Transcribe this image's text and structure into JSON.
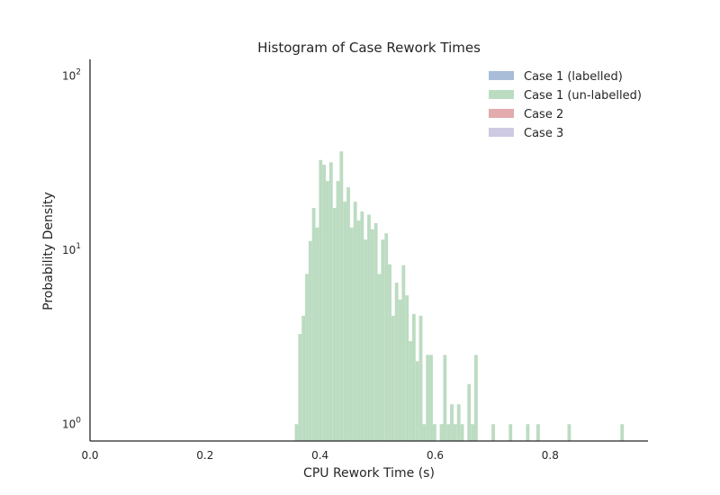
{
  "chart_data": {
    "type": "histogram",
    "title": "Histogram of Case Rework Times",
    "xlabel": "CPU Rework Time (s)",
    "ylabel": "Probability Density",
    "xlim": [
      0.0,
      0.97
    ],
    "ylim": [
      0.8,
      125
    ],
    "yscale": "log",
    "x_ticks": [
      0.0,
      0.2,
      0.4,
      0.6,
      0.8
    ],
    "x_tick_labels": [
      "0.0",
      "0.2",
      "0.4",
      "0.6",
      "0.8"
    ],
    "y_ticks": [
      1,
      10,
      100
    ],
    "y_tick_labels": [
      {
        "base": "10",
        "exp": "0"
      },
      {
        "base": "10",
        "exp": "1"
      },
      {
        "base": "10",
        "exp": "2"
      }
    ],
    "grid": false,
    "legend_position": "top-right",
    "series": [
      {
        "name": "Case 1 (labelled)",
        "color": "#a9bdd8",
        "bins": []
      },
      {
        "name": "Case 1 (un-labelled)",
        "color": "#bcdcc2",
        "bins": [
          [
            0.356,
            0.362,
            1.0
          ],
          [
            0.362,
            0.368,
            3.3
          ],
          [
            0.368,
            0.374,
            4.2
          ],
          [
            0.374,
            0.38,
            7.3
          ],
          [
            0.38,
            0.386,
            11.3
          ],
          [
            0.386,
            0.392,
            17.5
          ],
          [
            0.392,
            0.398,
            13.5
          ],
          [
            0.398,
            0.404,
            33
          ],
          [
            0.404,
            0.41,
            31
          ],
          [
            0.41,
            0.416,
            25
          ],
          [
            0.416,
            0.422,
            32
          ],
          [
            0.422,
            0.428,
            17.5
          ],
          [
            0.428,
            0.434,
            25
          ],
          [
            0.434,
            0.44,
            37
          ],
          [
            0.44,
            0.446,
            19
          ],
          [
            0.446,
            0.452,
            23
          ],
          [
            0.452,
            0.458,
            13.5
          ],
          [
            0.458,
            0.464,
            19
          ],
          [
            0.464,
            0.47,
            14.8
          ],
          [
            0.47,
            0.476,
            16.7
          ],
          [
            0.476,
            0.482,
            11.5
          ],
          [
            0.482,
            0.488,
            16
          ],
          [
            0.488,
            0.494,
            13.2
          ],
          [
            0.494,
            0.5,
            14.3
          ],
          [
            0.5,
            0.506,
            7.3
          ],
          [
            0.506,
            0.512,
            11.5
          ],
          [
            0.512,
            0.518,
            12.5
          ],
          [
            0.518,
            0.524,
            8.3
          ],
          [
            0.524,
            0.53,
            4.2
          ],
          [
            0.53,
            0.536,
            6.5
          ],
          [
            0.536,
            0.542,
            5.2
          ],
          [
            0.542,
            0.548,
            8.2
          ],
          [
            0.548,
            0.554,
            5.5
          ],
          [
            0.554,
            0.56,
            3.0
          ],
          [
            0.56,
            0.566,
            4.3
          ],
          [
            0.566,
            0.572,
            2.3
          ],
          [
            0.572,
            0.578,
            4.2
          ],
          [
            0.578,
            0.584,
            1.0
          ],
          [
            0.584,
            0.59,
            2.5
          ],
          [
            0.59,
            0.596,
            2.5
          ],
          [
            0.596,
            0.602,
            1.0
          ],
          [
            0.602,
            0.608,
            0
          ],
          [
            0.608,
            0.614,
            1.0
          ],
          [
            0.614,
            0.62,
            2.5
          ],
          [
            0.62,
            0.626,
            1.0
          ],
          [
            0.626,
            0.632,
            1.3
          ],
          [
            0.632,
            0.638,
            1.0
          ],
          [
            0.638,
            0.644,
            1.3
          ],
          [
            0.644,
            0.65,
            1.0
          ],
          [
            0.65,
            0.656,
            0
          ],
          [
            0.656,
            0.662,
            1.7
          ],
          [
            0.662,
            0.668,
            1.0
          ],
          [
            0.668,
            0.674,
            2.5
          ],
          [
            0.698,
            0.704,
            1.0
          ],
          [
            0.728,
            0.734,
            1.0
          ],
          [
            0.758,
            0.764,
            1.0
          ],
          [
            0.776,
            0.782,
            1.0
          ],
          [
            0.83,
            0.836,
            1.0
          ],
          [
            0.922,
            0.928,
            1.0
          ]
        ]
      },
      {
        "name": "Case 2",
        "color": "#e3abad",
        "bins": []
      },
      {
        "name": "Case 3",
        "color": "#cfcae3",
        "bins": []
      }
    ]
  }
}
